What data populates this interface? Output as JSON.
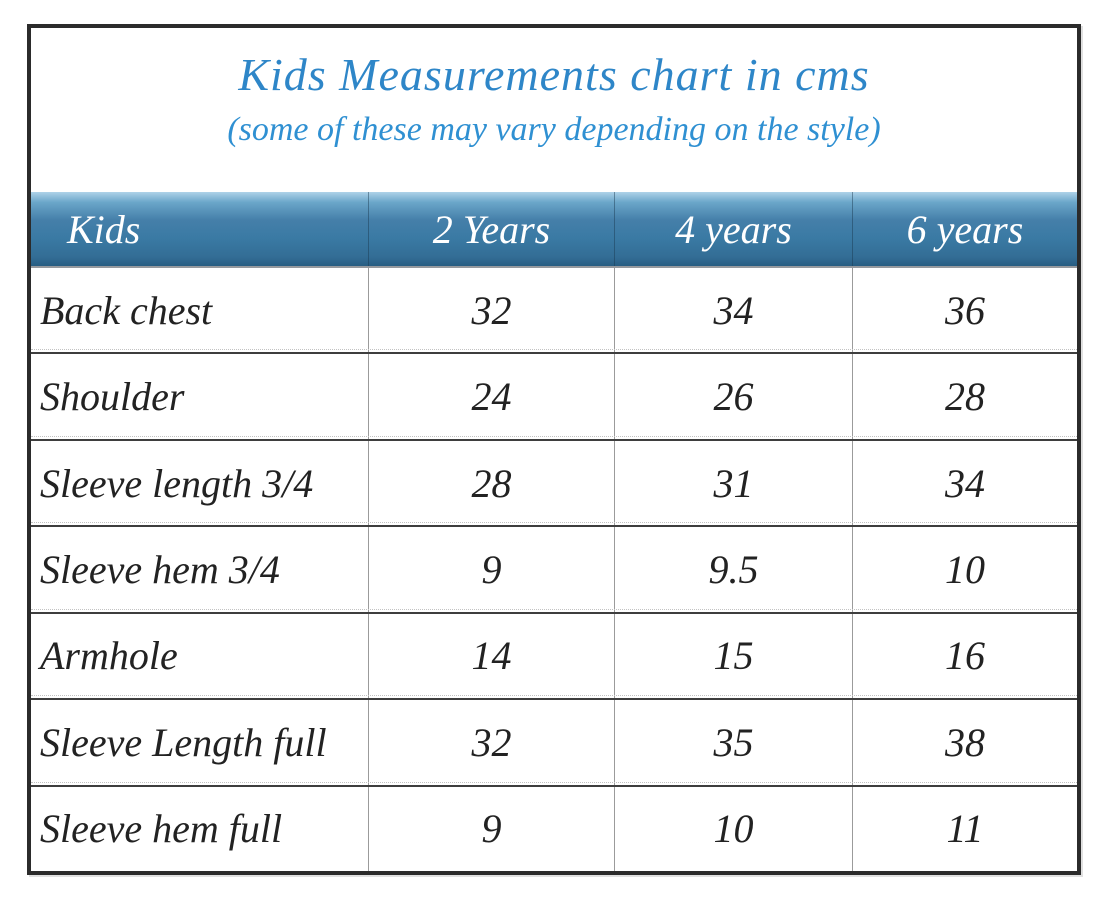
{
  "title": "Kids Measurements chart in cms",
  "subtitle": "(some of these may vary depending on the style)",
  "colors": {
    "title_blue": "#2e86c8",
    "subtitle_blue": "#2f90d2",
    "header_gradient_top": "#aed2e8",
    "header_gradient_bottom": "#275d82",
    "header_text": "#ffffff",
    "body_text": "#222222",
    "frame_border": "#2b2b2b",
    "row_separator": "#3e3e3e",
    "column_separator": "#9b9b9b"
  },
  "table": {
    "headers": [
      "Kids",
      "2 Years",
      "4 years",
      "6 years"
    ],
    "rows": [
      {
        "label": "Back chest",
        "values": [
          "32",
          "34",
          "36"
        ]
      },
      {
        "label": "Shoulder",
        "values": [
          "24",
          "26",
          "28"
        ]
      },
      {
        "label": "Sleeve length 3/4",
        "values": [
          "28",
          "31",
          "34"
        ]
      },
      {
        "label": "Sleeve hem 3/4",
        "values": [
          "9",
          "9.5",
          "10"
        ]
      },
      {
        "label": "Armhole",
        "values": [
          "14",
          "15",
          "16"
        ]
      },
      {
        "label": "Sleeve Length full",
        "values": [
          "32",
          "35",
          "38"
        ]
      },
      {
        "label": "Sleeve hem full",
        "values": [
          "9",
          "10",
          "11"
        ]
      }
    ]
  }
}
